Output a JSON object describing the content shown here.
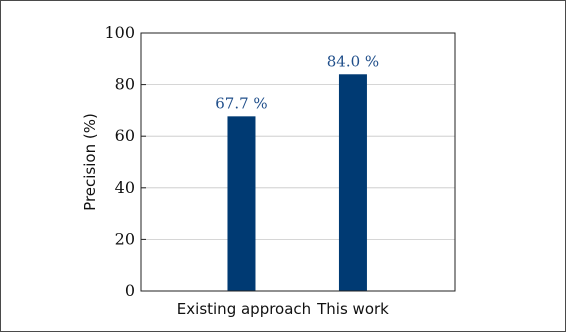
{
  "chart_data": {
    "type": "bar",
    "categories": [
      "Existing approach",
      "This work"
    ],
    "values": [
      67.7,
      84.0
    ],
    "data_labels": [
      "67.7 %",
      "84.0 %"
    ],
    "ylabel": "Precision (%)",
    "xlabel": "",
    "ylim": [
      0,
      100
    ],
    "yticks": [
      "0",
      "20",
      "40",
      "60",
      "80",
      "100"
    ],
    "grid": true,
    "bar_color": "#003a73",
    "label_color": "#1f4e8a",
    "grid_color": "#c8c8c8"
  }
}
